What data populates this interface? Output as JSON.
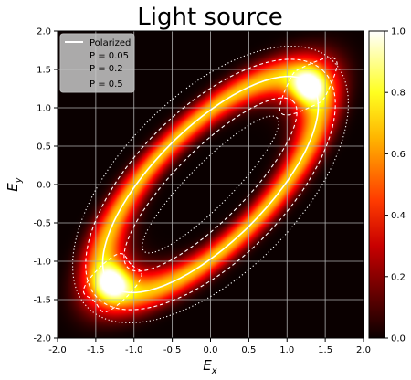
{
  "chart_data": {
    "type": "heatmap",
    "title": "Light source",
    "xlabel": "E",
    "xlabel_sub": "x",
    "ylabel": "E",
    "ylabel_sub": "y",
    "xlim": [
      -2.0,
      2.0
    ],
    "ylim": [
      -2.0,
      2.0
    ],
    "xticks": [
      "-2.0",
      "-1.5",
      "-1.0",
      "-0.5",
      "0.0",
      "0.5",
      "1.0",
      "1.5",
      "2.0"
    ],
    "yticks": [
      "-2.0",
      "-1.5",
      "-1.0",
      "-0.5",
      "0.0",
      "0.5",
      "1.0",
      "1.5",
      "2.0"
    ],
    "grid": true,
    "colormap": "hot",
    "colorbar": {
      "range": [
        0.0,
        1.0
      ],
      "ticks": [
        "0.0",
        "0.2",
        "0.4",
        "0.6",
        "0.8",
        "1.0"
      ]
    },
    "ellipse": {
      "center": [
        0.0,
        0.0
      ],
      "semi_major": 1.85,
      "semi_minor": 0.74,
      "angle_deg": 45
    },
    "peaks": [
      [
        1.28,
        1.28
      ],
      [
        -1.28,
        -1.28
      ]
    ],
    "legend": {
      "placement": "top-left",
      "entries": [
        {
          "label": "Polarized",
          "style": "solid",
          "color": "#ffffff"
        },
        {
          "label": "P = 0.05",
          "style": "none",
          "color": "#ffffff"
        },
        {
          "label": "P = 0.2",
          "style": "none",
          "color": "#ffffff"
        },
        {
          "label": "P = 0.5",
          "style": "none",
          "color": "#ffffff"
        }
      ]
    },
    "contours": [
      {
        "name": "contour-p05-outer",
        "level": "P = 0.05",
        "style": "dotted"
      },
      {
        "name": "contour-p05-inner",
        "level": "P = 0.05",
        "style": "dotted"
      },
      {
        "name": "contour-p02-outer",
        "level": "P = 0.2",
        "style": "dashed"
      },
      {
        "name": "contour-p02-inner",
        "level": "P = 0.2",
        "style": "dashed"
      },
      {
        "name": "contour-p05-peak",
        "level": "P = 0.5",
        "style": "dashed"
      }
    ]
  }
}
